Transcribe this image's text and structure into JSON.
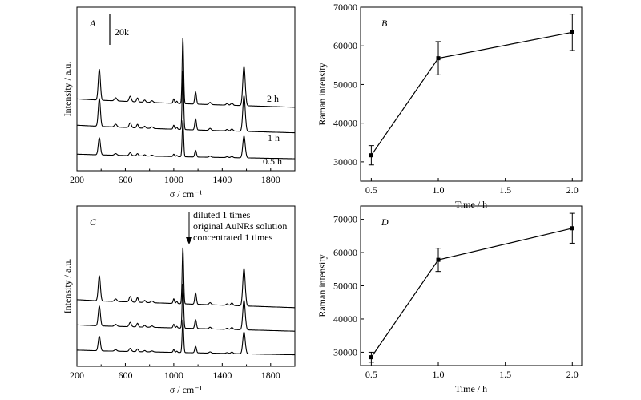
{
  "chart_data": [
    {
      "id": "A",
      "type": "line",
      "panel_label": "A",
      "xlabel": "σ / cm⁻¹",
      "ylabel": "Intensity / a.u.",
      "xlim": [
        200,
        2000
      ],
      "xticks": [
        200,
        600,
        1000,
        1400,
        1800
      ],
      "scale_bar_label": "20k",
      "scale_bar_value": 20000,
      "series": [
        {
          "name": "2 h",
          "offset": 56000,
          "scale": 1.0,
          "baseline": [
            [
              200,
              52000
            ],
            [
              400,
              49000
            ],
            [
              800,
              44000
            ],
            [
              1200,
              40000
            ],
            [
              1600,
              36500
            ],
            [
              2000,
              33000
            ]
          ]
        },
        {
          "name": "1 h",
          "offset": 26000,
          "scale": 0.9,
          "baseline": [
            [
              200,
              52000
            ],
            [
              400,
              49000
            ],
            [
              800,
              44000
            ],
            [
              1200,
              40000
            ],
            [
              1600,
              36500
            ],
            [
              2000,
              33000
            ]
          ]
        },
        {
          "name": "0.5 h",
          "offset": 0,
          "scale": 0.55,
          "baseline": [
            [
              200,
              52000
            ],
            [
              400,
              49000
            ],
            [
              800,
              44000
            ],
            [
              1200,
              40000
            ],
            [
              1600,
              36500
            ],
            [
              2000,
              33000
            ]
          ]
        }
      ],
      "peaks": [
        {
          "x": 385,
          "h": 70000,
          "w": 9
        },
        {
          "x": 520,
          "h": 7000,
          "w": 10
        },
        {
          "x": 640,
          "h": 12000,
          "w": 9
        },
        {
          "x": 700,
          "h": 9000,
          "w": 7
        },
        {
          "x": 760,
          "h": 5000,
          "w": 8
        },
        {
          "x": 820,
          "h": 4000,
          "w": 10
        },
        {
          "x": 1000,
          "h": 10000,
          "w": 6
        },
        {
          "x": 1025,
          "h": 5000,
          "w": 6
        },
        {
          "x": 1075,
          "h": 150000,
          "w": 6
        },
        {
          "x": 1180,
          "h": 28000,
          "w": 7
        },
        {
          "x": 1300,
          "h": 5000,
          "w": 9
        },
        {
          "x": 1440,
          "h": 3500,
          "w": 9
        },
        {
          "x": 1480,
          "h": 5000,
          "w": 9
        },
        {
          "x": 1580,
          "h": 90000,
          "w": 10
        }
      ]
    },
    {
      "id": "B",
      "type": "line",
      "panel_label": "B",
      "xlabel": "Time / h",
      "ylabel": "Raman intensity",
      "xlim": [
        0.42,
        2.07
      ],
      "ylim": [
        25000,
        70000
      ],
      "xticks": [
        0.5,
        1.0,
        1.5,
        2.0
      ],
      "yticks": [
        30000,
        40000,
        50000,
        60000,
        70000
      ],
      "x": [
        0.5,
        1.0,
        2.0
      ],
      "y": [
        31700,
        56800,
        63500
      ],
      "err": [
        2500,
        4300,
        4700
      ]
    },
    {
      "id": "C",
      "type": "line",
      "panel_label": "C",
      "xlabel": "σ / cm⁻¹",
      "ylabel": "Intensity / a.u.",
      "xlim": [
        200,
        2000
      ],
      "xticks": [
        200,
        600,
        1000,
        1400,
        1800
      ],
      "annotations": [
        "diluted 1 times",
        "original AuNRs solution",
        "concentrated 1 times"
      ],
      "series": [
        {
          "offset": 52000,
          "scale": 0.95,
          "baseline": [
            [
              200,
              50000
            ],
            [
              400,
              47000
            ],
            [
              800,
              43000
            ],
            [
              1200,
              39000
            ],
            [
              1600,
              35000
            ],
            [
              2000,
              31000
            ]
          ]
        },
        {
          "offset": 26000,
          "scale": 0.75,
          "baseline": [
            [
              200,
              50000
            ],
            [
              400,
              47000
            ],
            [
              800,
              43000
            ],
            [
              1200,
              39000
            ],
            [
              1600,
              35000
            ],
            [
              2000,
              31000
            ]
          ]
        },
        {
          "offset": 0,
          "scale": 0.55,
          "baseline": [
            [
              200,
              50000
            ],
            [
              400,
              47000
            ],
            [
              800,
              43000
            ],
            [
              1200,
              39000
            ],
            [
              1600,
              35000
            ],
            [
              2000,
              31000
            ]
          ]
        }
      ],
      "peaks": [
        {
          "x": 385,
          "h": 60000,
          "w": 9
        },
        {
          "x": 520,
          "h": 6000,
          "w": 10
        },
        {
          "x": 640,
          "h": 13000,
          "w": 9
        },
        {
          "x": 700,
          "h": 11000,
          "w": 7
        },
        {
          "x": 760,
          "h": 5000,
          "w": 8
        },
        {
          "x": 820,
          "h": 4000,
          "w": 10
        },
        {
          "x": 1000,
          "h": 11000,
          "w": 6
        },
        {
          "x": 1025,
          "h": 5000,
          "w": 6
        },
        {
          "x": 1075,
          "h": 135000,
          "w": 6
        },
        {
          "x": 1180,
          "h": 27000,
          "w": 7
        },
        {
          "x": 1300,
          "h": 5000,
          "w": 9
        },
        {
          "x": 1440,
          "h": 3500,
          "w": 9
        },
        {
          "x": 1480,
          "h": 6000,
          "w": 9
        },
        {
          "x": 1580,
          "h": 90000,
          "w": 10
        }
      ]
    },
    {
      "id": "D",
      "type": "line",
      "panel_label": "D",
      "xlabel": "Time / h",
      "ylabel": "Raman intensity",
      "xlim": [
        0.42,
        2.07
      ],
      "ylim": [
        26000,
        74000
      ],
      "xticks": [
        0.5,
        1.0,
        1.5,
        2.0
      ],
      "yticks": [
        30000,
        40000,
        50000,
        60000,
        70000
      ],
      "x": [
        0.5,
        1.0,
        2.0
      ],
      "y": [
        28500,
        57800,
        67300
      ],
      "err": [
        1500,
        3500,
        4500
      ]
    }
  ]
}
